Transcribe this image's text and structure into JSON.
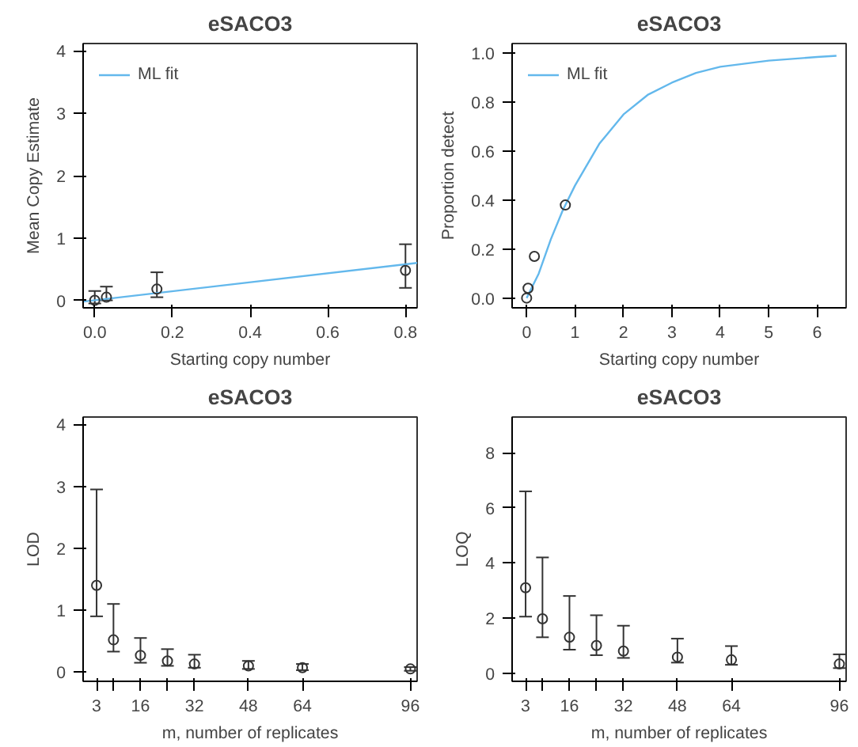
{
  "chart_data": [
    {
      "type": "scatter",
      "title": "eSACO3",
      "xlabel": "Starting copy number",
      "ylabel": "Mean Copy Estimate",
      "xlim": [
        -0.03,
        0.83
      ],
      "ylim": [
        -0.12,
        4.12
      ],
      "xticks": [
        {
          "value": 0,
          "label": "0.0"
        },
        0.2,
        0.4,
        0.6,
        0.8
      ],
      "yticks": [
        0,
        1,
        2,
        3,
        4
      ],
      "grid": false,
      "legend": "top left",
      "series": [
        {
          "type": "line",
          "name": "ML fit",
          "color": "#63b8ec",
          "x": [
            -0.03,
            0.83
          ],
          "values": [
            -0.02,
            0.6
          ]
        },
        {
          "type": "scatter",
          "color": "#333333",
          "marker": "circle",
          "x": [
            0,
            0.03,
            0.16,
            0.8
          ],
          "values": [
            0,
            0.05,
            0.18,
            0.48
          ],
          "errors": [
            [
              -0.05,
              0.15
            ],
            [
              0,
              0.22
            ],
            [
              0.05,
              0.45
            ],
            [
              0.2,
              0.9
            ]
          ]
        }
      ]
    },
    {
      "type": "scatter",
      "title": "eSACO3",
      "xlabel": "Starting copy number",
      "ylabel": "Proportion detect",
      "xlim": [
        -0.3,
        6.6
      ],
      "ylim": [
        -0.04,
        1.04
      ],
      "xticks": [
        0,
        1,
        2,
        3,
        4,
        5,
        6
      ],
      "yticks": [
        {
          "value": 0,
          "label": "0.0"
        },
        0.2,
        0.4,
        0.6,
        0.8,
        {
          "value": 1,
          "label": "1.0"
        }
      ],
      "grid": false,
      "legend": "top left",
      "series": [
        {
          "type": "line",
          "name": "ML fit",
          "color": "#63b8ec",
          "x": [
            0,
            0.25,
            0.5,
            0.75,
            1,
            1.5,
            2,
            2.5,
            3,
            3.5,
            4,
            5,
            6,
            6.4
          ],
          "values": [
            0,
            0.1,
            0.24,
            0.36,
            0.46,
            0.63,
            0.75,
            0.83,
            0.88,
            0.92,
            0.945,
            0.97,
            0.985,
            0.99
          ]
        },
        {
          "type": "scatter",
          "color": "#333333",
          "marker": "circle",
          "x": [
            0,
            0.03,
            0.16,
            0.8
          ],
          "values": [
            0,
            0.04,
            0.17,
            0.38
          ]
        }
      ]
    },
    {
      "type": "scatter",
      "title": "eSACO3",
      "xlabel": "m, number of replicates",
      "ylabel": "LOD",
      "xlim": [
        -1,
        98
      ],
      "ylim": [
        -0.15,
        4.12
      ],
      "xticks": [
        3,
        {
          "value": 8,
          "label": null
        },
        16,
        {
          "value": 24,
          "label": null
        },
        32,
        48,
        64,
        96
      ],
      "yticks": [
        0,
        1,
        2,
        3,
        4
      ],
      "grid": false,
      "series": [
        {
          "type": "scatter",
          "color": "#333333",
          "marker": "circle",
          "x": [
            3,
            8,
            16,
            24,
            32,
            48,
            64,
            96
          ],
          "values": [
            1.4,
            0.52,
            0.27,
            0.18,
            0.13,
            0.1,
            0.07,
            0.05
          ],
          "errors": [
            [
              0.9,
              2.95
            ],
            [
              0.33,
              1.1
            ],
            [
              0.15,
              0.55
            ],
            [
              0.1,
              0.37
            ],
            [
              0.07,
              0.28
            ],
            [
              0.05,
              0.18
            ],
            [
              0.03,
              0.13
            ],
            [
              0.02,
              0.08
            ]
          ]
        }
      ]
    },
    {
      "type": "scatter",
      "title": "eSACO3",
      "xlabel": "m, number of replicates",
      "ylabel": "LOQ",
      "xlim": [
        -1,
        98
      ],
      "ylim": [
        -0.3,
        9.3
      ],
      "xticks": [
        3,
        {
          "value": 8,
          "label": null
        },
        16,
        {
          "value": 24,
          "label": null
        },
        32,
        48,
        64,
        96
      ],
      "yticks": [
        0,
        2,
        4,
        6,
        8
      ],
      "grid": false,
      "series": [
        {
          "type": "scatter",
          "color": "#333333",
          "marker": "circle",
          "x": [
            3,
            8,
            16,
            24,
            32,
            48,
            64,
            96
          ],
          "values": [
            3.1,
            1.97,
            1.3,
            1.0,
            0.8,
            0.58,
            0.48,
            0.33
          ],
          "errors": [
            [
              2.05,
              6.6
            ],
            [
              1.3,
              4.2
            ],
            [
              0.85,
              2.8
            ],
            [
              0.65,
              2.1
            ],
            [
              0.55,
              1.72
            ],
            [
              0.38,
              1.25
            ],
            [
              0.3,
              0.98
            ],
            [
              0.18,
              0.68
            ]
          ]
        }
      ]
    }
  ]
}
